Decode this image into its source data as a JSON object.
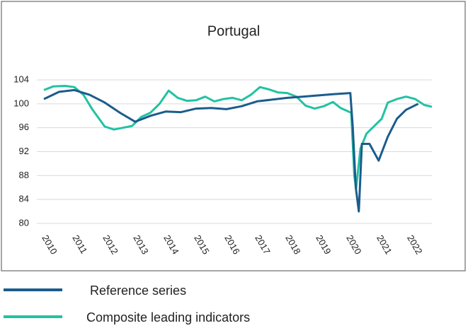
{
  "chart_data": {
    "type": "line",
    "title": "Portugal",
    "xlim": [
      2010,
      2022.75
    ],
    "xticks": [
      2010,
      2011,
      2012,
      2013,
      2014,
      2015,
      2016,
      2017,
      2018,
      2019,
      2020,
      2021,
      2022
    ],
    "ylim": [
      80,
      104
    ],
    "yticks": [
      80,
      84,
      88,
      92,
      96,
      100,
      104
    ],
    "grid": true,
    "series": [
      {
        "name": "Reference series",
        "color": "#1b5c8c",
        "x": [
          2010.0,
          2010.5,
          2011.0,
          2011.5,
          2012.0,
          2012.5,
          2013.0,
          2013.5,
          2014.0,
          2014.5,
          2015.0,
          2015.5,
          2016.0,
          2016.5,
          2017.0,
          2017.5,
          2018.0,
          2018.5,
          2019.0,
          2019.5,
          2020.07,
          2020.15,
          2020.25,
          2020.35,
          2020.45,
          2020.7,
          2021.0,
          2021.3,
          2021.6,
          2021.9,
          2022.3
        ],
        "values": [
          100.8,
          102,
          102.3,
          101.5,
          100.2,
          98.5,
          97,
          98,
          98.7,
          98.6,
          99.2,
          99.3,
          99.1,
          99.6,
          100.4,
          100.7,
          101,
          101.2,
          101.4,
          101.6,
          101.8,
          96,
          86,
          82,
          93.3,
          93.3,
          90.5,
          94.5,
          97.5,
          99,
          100
        ]
      },
      {
        "name": "Composite leading indicators",
        "color": "#22c2a2",
        "x": [
          2010.0,
          2010.3,
          2010.7,
          2011.0,
          2011.3,
          2011.6,
          2012.0,
          2012.3,
          2012.6,
          2012.9,
          2013.2,
          2013.5,
          2013.8,
          2014.1,
          2014.4,
          2014.7,
          2015.0,
          2015.3,
          2015.6,
          2015.9,
          2016.2,
          2016.5,
          2016.8,
          2017.1,
          2017.4,
          2017.7,
          2018.0,
          2018.3,
          2018.6,
          2018.9,
          2019.2,
          2019.5,
          2019.75,
          2020.1,
          2020.2,
          2020.26,
          2020.4,
          2020.6,
          2020.9,
          2021.1,
          2021.3,
          2021.6,
          2021.9,
          2022.2,
          2022.5,
          2022.75
        ],
        "values": [
          102.3,
          102.9,
          103,
          102.8,
          101.5,
          99,
          96.2,
          95.7,
          96,
          96.3,
          97.8,
          98.5,
          100,
          102.2,
          101,
          100.5,
          100.6,
          101.2,
          100.4,
          100.8,
          101,
          100.6,
          101.5,
          102.8,
          102.4,
          101.9,
          101.8,
          101.2,
          99.7,
          99.2,
          99.6,
          100.3,
          99.3,
          98.5,
          88,
          85.8,
          92.5,
          95,
          96.5,
          97.5,
          100.2,
          100.8,
          101.2,
          100.8,
          99.8,
          99.5
        ]
      }
    ]
  }
}
